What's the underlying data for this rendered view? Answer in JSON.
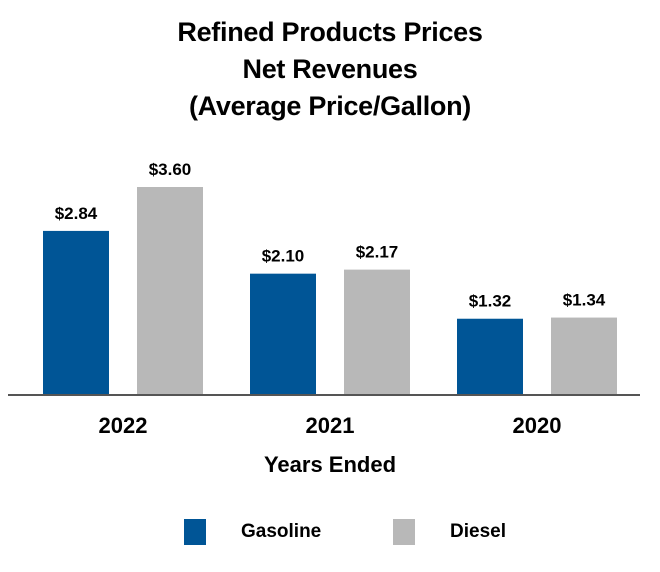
{
  "title": {
    "line1": "Refined Products Prices",
    "line2": "Net Revenues",
    "line3": "(Average Price/Gallon)"
  },
  "colors": {
    "gasoline": "#005596",
    "diesel": "#b8b8b8",
    "axis": "#555555"
  },
  "chart_data": {
    "type": "bar",
    "categories": [
      "2022",
      "2021",
      "2020"
    ],
    "series": [
      {
        "name": "Gasoline",
        "values": [
          2.84,
          2.1,
          1.32
        ],
        "labels": [
          "$2.84",
          "$2.10",
          "$1.32"
        ],
        "color": "#005596"
      },
      {
        "name": "Diesel",
        "values": [
          3.6,
          2.17,
          1.34
        ],
        "labels": [
          "$3.60",
          "$2.17",
          "$1.34"
        ],
        "color": "#b8b8b8"
      }
    ],
    "title": "Refined Products Prices Net Revenues (Average Price/Gallon)",
    "xlabel": "Years Ended",
    "ylabel": "",
    "ylim": [
      0,
      3.6
    ],
    "grid": false,
    "legend": "bottom"
  },
  "legend": {
    "items": [
      {
        "label": "Gasoline",
        "color": "#005596"
      },
      {
        "label": "Diesel",
        "color": "#b8b8b8"
      }
    ]
  }
}
